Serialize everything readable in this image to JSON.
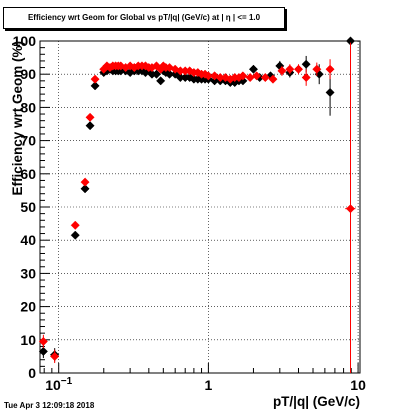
{
  "chart_data": {
    "type": "scatter",
    "title": "Efficiency wrt Geom for Global vs pT/|q| (GeV/c) at | η | <= 1.0",
    "xlabel": "pT/|q| (GeV/c)",
    "ylabel": "Efficiency wrt Geom (%)",
    "xscale": "log",
    "xlim": [
      0.075,
      10.3
    ],
    "ylim": [
      0,
      100
    ],
    "grid": true,
    "x_tick_labels": [
      {
        "value": 0.1,
        "base": "10",
        "exp": "−1"
      },
      {
        "value": 1,
        "text": "1"
      },
      {
        "value": 10,
        "text": "10"
      }
    ],
    "y_tick_labels": [
      "0",
      "10",
      "20",
      "30",
      "40",
      "50",
      "60",
      "70",
      "80",
      "90",
      "100"
    ],
    "series": [
      {
        "color": "#000000",
        "marker": "diamond",
        "points": [
          {
            "x": 0.079,
            "y": 6.5,
            "ey": 2,
            "ex": 0.002
          },
          {
            "x": 0.094,
            "y": 5.5,
            "ey": 2,
            "ex": 0.006
          },
          {
            "x": 0.129,
            "y": 41.5,
            "ey": 1,
            "ex": 0.005
          },
          {
            "x": 0.15,
            "y": 55.5,
            "ey": 1
          },
          {
            "x": 0.162,
            "y": 74.5,
            "ey": 1
          },
          {
            "x": 0.175,
            "y": 86.5,
            "ey": 1
          },
          {
            "x": 0.2,
            "y": 90.5
          },
          {
            "x": 0.21,
            "y": 91
          },
          {
            "x": 0.22,
            "y": 91.5
          },
          {
            "x": 0.23,
            "y": 91
          },
          {
            "x": 0.24,
            "y": 91
          },
          {
            "x": 0.25,
            "y": 91
          },
          {
            "x": 0.26,
            "y": 91
          },
          {
            "x": 0.28,
            "y": 91
          },
          {
            "x": 0.3,
            "y": 90.5
          },
          {
            "x": 0.32,
            "y": 91
          },
          {
            "x": 0.34,
            "y": 91
          },
          {
            "x": 0.36,
            "y": 91
          },
          {
            "x": 0.38,
            "y": 90.5
          },
          {
            "x": 0.4,
            "y": 91.5
          },
          {
            "x": 0.42,
            "y": 90
          },
          {
            "x": 0.45,
            "y": 90
          },
          {
            "x": 0.48,
            "y": 88
          },
          {
            "x": 0.5,
            "y": 91
          },
          {
            "x": 0.52,
            "y": 90.5
          },
          {
            "x": 0.55,
            "y": 90
          },
          {
            "x": 0.6,
            "y": 90
          },
          {
            "x": 0.65,
            "y": 89
          },
          {
            "x": 0.7,
            "y": 89
          },
          {
            "x": 0.75,
            "y": 89
          },
          {
            "x": 0.8,
            "y": 88.5
          },
          {
            "x": 0.85,
            "y": 88.5
          },
          {
            "x": 0.9,
            "y": 88.5
          },
          {
            "x": 0.95,
            "y": 88.5
          },
          {
            "x": 1.0,
            "y": 88.5
          },
          {
            "x": 1.1,
            "y": 88
          },
          {
            "x": 1.2,
            "y": 88
          },
          {
            "x": 1.3,
            "y": 88
          },
          {
            "x": 1.4,
            "y": 87.5
          },
          {
            "x": 1.5,
            "y": 87.5
          },
          {
            "x": 1.6,
            "y": 88
          },
          {
            "x": 1.7,
            "y": 88
          },
          {
            "x": 2.0,
            "y": 91.5,
            "ey": 1
          },
          {
            "x": 2.2,
            "y": 89,
            "ey": 1
          },
          {
            "x": 2.6,
            "y": 89.5,
            "ey": 1
          },
          {
            "x": 3.0,
            "y": 92.5,
            "ey": 1.5
          },
          {
            "x": 3.5,
            "y": 90.5,
            "ey": 1.5
          },
          {
            "x": 4.5,
            "y": 93,
            "ey": 2.5
          },
          {
            "x": 5.5,
            "y": 90,
            "ey": 3
          },
          {
            "x": 6.5,
            "y": 84.5,
            "ey": 7
          },
          {
            "x": 8.9,
            "y": 100,
            "ey": 0,
            "ex": 0.7
          }
        ]
      },
      {
        "color": "#ff0000",
        "marker": "diamond",
        "points": [
          {
            "x": 0.079,
            "y": 9.5,
            "ey": 2,
            "ex": 0.002
          },
          {
            "x": 0.094,
            "y": 5,
            "ey": 2,
            "ex": 0.006
          },
          {
            "x": 0.129,
            "y": 44.5,
            "ey": 1,
            "ex": 0.005
          },
          {
            "x": 0.15,
            "y": 57.5,
            "ey": 1
          },
          {
            "x": 0.162,
            "y": 77,
            "ey": 1
          },
          {
            "x": 0.175,
            "y": 88.5,
            "ey": 1
          },
          {
            "x": 0.2,
            "y": 91.5
          },
          {
            "x": 0.21,
            "y": 92.5
          },
          {
            "x": 0.22,
            "y": 92
          },
          {
            "x": 0.23,
            "y": 92.5
          },
          {
            "x": 0.24,
            "y": 92.5
          },
          {
            "x": 0.25,
            "y": 92.5
          },
          {
            "x": 0.26,
            "y": 92.5
          },
          {
            "x": 0.28,
            "y": 92
          },
          {
            "x": 0.3,
            "y": 92.5
          },
          {
            "x": 0.32,
            "y": 92
          },
          {
            "x": 0.34,
            "y": 92.5
          },
          {
            "x": 0.36,
            "y": 92.5
          },
          {
            "x": 0.38,
            "y": 92.5
          },
          {
            "x": 0.4,
            "y": 92
          },
          {
            "x": 0.42,
            "y": 92
          },
          {
            "x": 0.45,
            "y": 92.5
          },
          {
            "x": 0.48,
            "y": 91.5
          },
          {
            "x": 0.5,
            "y": 92.5
          },
          {
            "x": 0.52,
            "y": 92
          },
          {
            "x": 0.55,
            "y": 92
          },
          {
            "x": 0.6,
            "y": 91.5
          },
          {
            "x": 0.65,
            "y": 91
          },
          {
            "x": 0.7,
            "y": 91
          },
          {
            "x": 0.75,
            "y": 91
          },
          {
            "x": 0.8,
            "y": 90.5
          },
          {
            "x": 0.85,
            "y": 90.5
          },
          {
            "x": 0.9,
            "y": 90
          },
          {
            "x": 0.95,
            "y": 90
          },
          {
            "x": 1.0,
            "y": 89.5
          },
          {
            "x": 1.1,
            "y": 89.5
          },
          {
            "x": 1.2,
            "y": 89
          },
          {
            "x": 1.3,
            "y": 89
          },
          {
            "x": 1.4,
            "y": 88.5
          },
          {
            "x": 1.5,
            "y": 89
          },
          {
            "x": 1.6,
            "y": 89
          },
          {
            "x": 1.7,
            "y": 89.5
          },
          {
            "x": 1.9,
            "y": 89,
            "ey": 1
          },
          {
            "x": 2.1,
            "y": 89.5,
            "ey": 1
          },
          {
            "x": 2.4,
            "y": 89,
            "ey": 1
          },
          {
            "x": 2.7,
            "y": 88.5,
            "ey": 1
          },
          {
            "x": 3.1,
            "y": 91,
            "ey": 1.5
          },
          {
            "x": 3.5,
            "y": 91.5,
            "ey": 1.5
          },
          {
            "x": 4.0,
            "y": 91.5,
            "ey": 1.5
          },
          {
            "x": 4.5,
            "y": 89,
            "ey": 2.5
          },
          {
            "x": 5.3,
            "y": 91.5,
            "ey": 2
          },
          {
            "x": 6.5,
            "y": 91.5,
            "ey": 3
          },
          {
            "x": 8.9,
            "y": 49.5,
            "ey": 50,
            "ex": 0.7
          }
        ]
      }
    ]
  },
  "footer": {
    "timestamp": "Tue Apr  3 12:09:18 2018"
  }
}
